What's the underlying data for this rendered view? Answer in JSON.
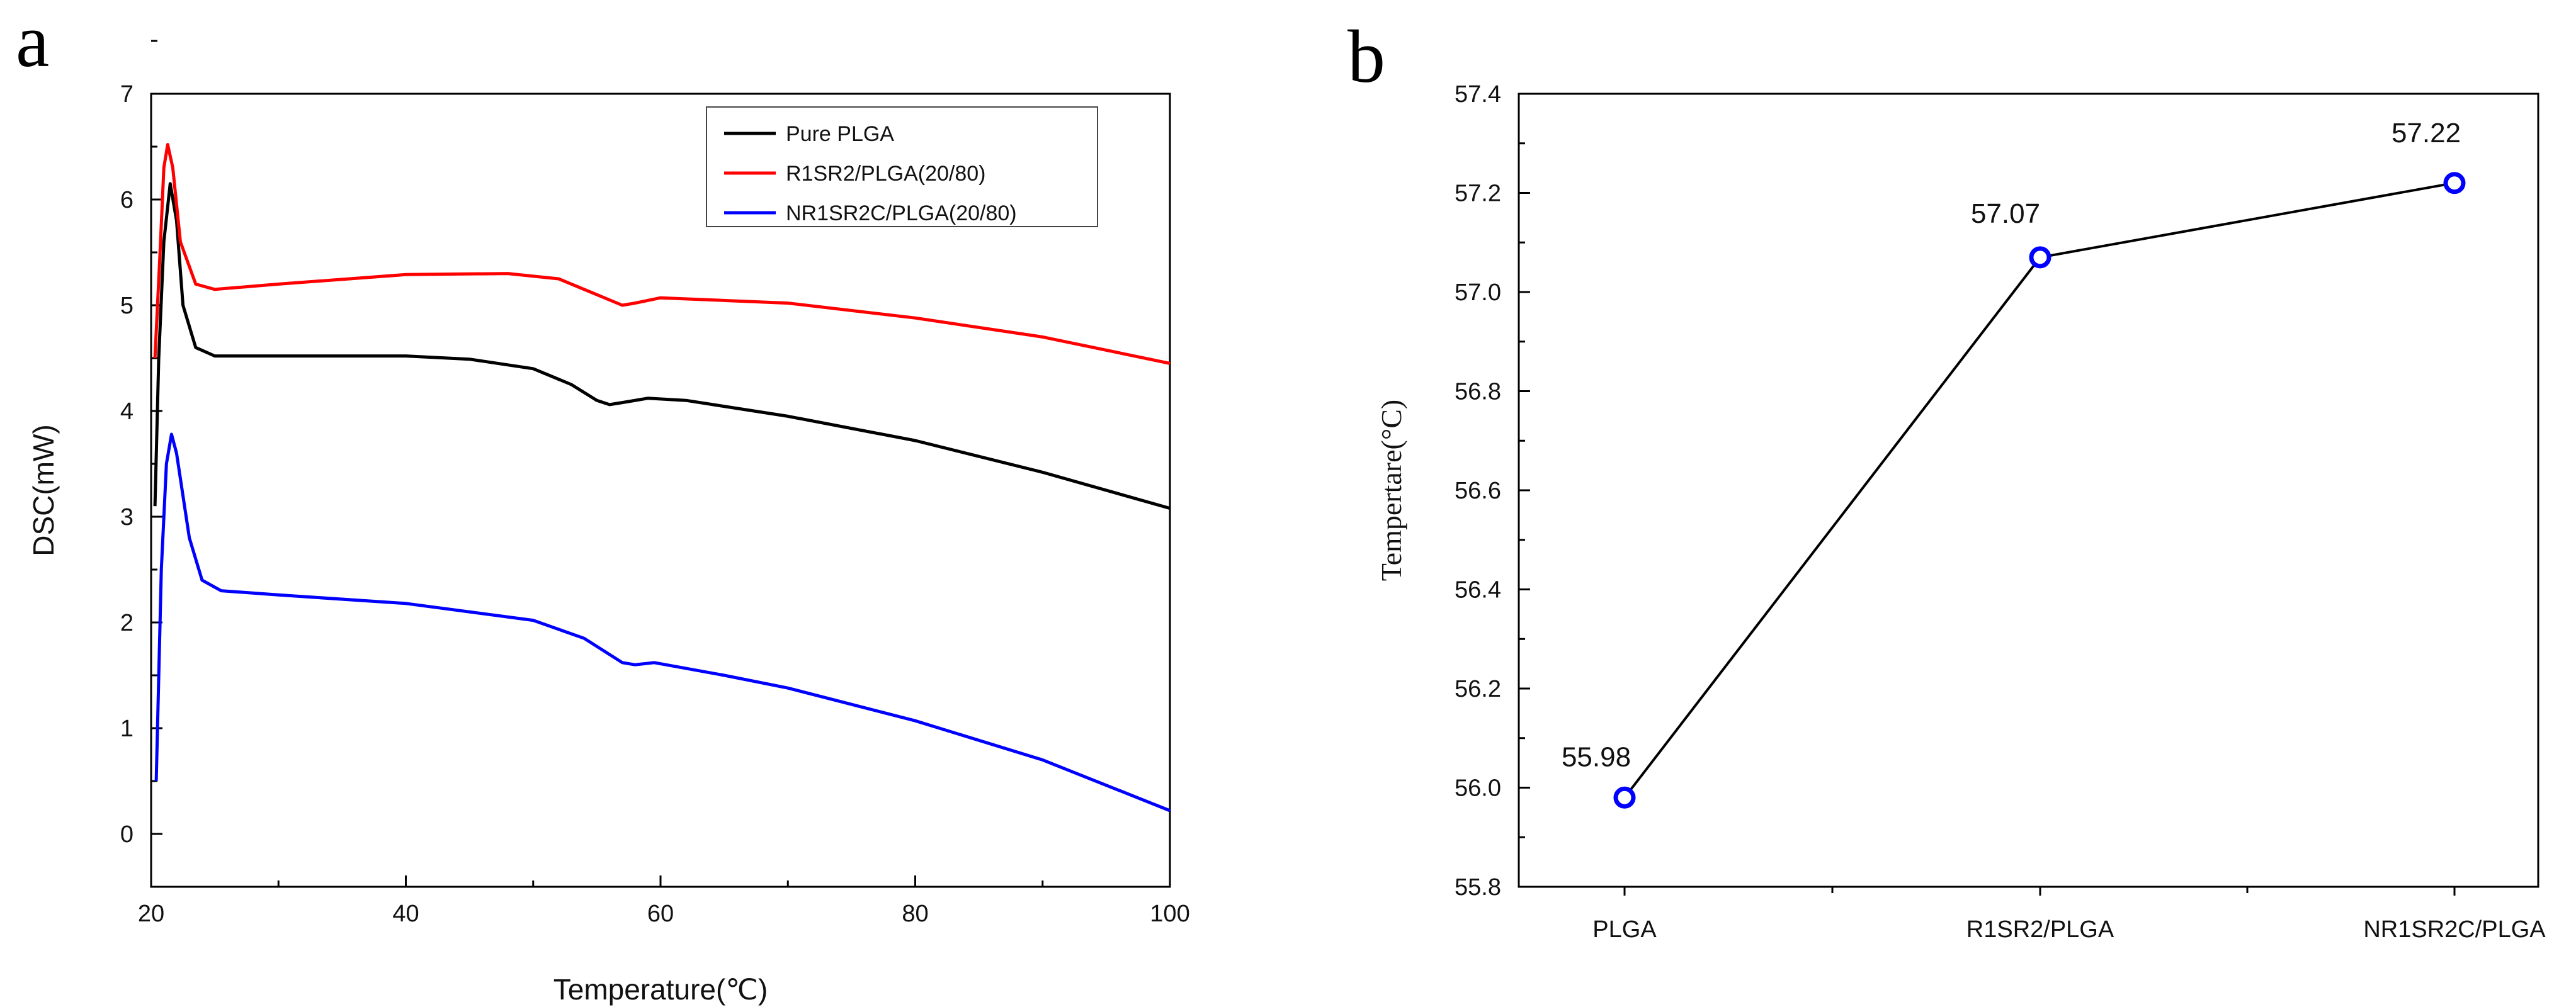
{
  "panels": {
    "a": "a",
    "b": "b"
  },
  "chart_data": [
    {
      "type": "line",
      "xlabel": "Temperature(℃)",
      "ylabel": "DSC(mW)",
      "xlim": [
        20,
        100
      ],
      "ylim": [
        -0.5,
        7
      ],
      "xticks": [
        "20",
        "40",
        "60",
        "80",
        "100"
      ],
      "yticks": [
        "0",
        "1",
        "2",
        "3",
        "4",
        "5",
        "6",
        "7"
      ],
      "grid": false,
      "legend_position": "top-right",
      "series": [
        {
          "name": "Pure PLGA",
          "color": "#000000",
          "points": [
            [
              20.3,
              3.1
            ],
            [
              20.6,
              4.5
            ],
            [
              21,
              5.6
            ],
            [
              21.5,
              6.15
            ],
            [
              22,
              5.8
            ],
            [
              22.5,
              5.0
            ],
            [
              23.5,
              4.6
            ],
            [
              25,
              4.52
            ],
            [
              30,
              4.52
            ],
            [
              40,
              4.52
            ],
            [
              45,
              4.49
            ],
            [
              50,
              4.4
            ],
            [
              53,
              4.25
            ],
            [
              55,
              4.1
            ],
            [
              56,
              4.06
            ],
            [
              57,
              4.08
            ],
            [
              59,
              4.12
            ],
            [
              62,
              4.1
            ],
            [
              70,
              3.95
            ],
            [
              80,
              3.72
            ],
            [
              90,
              3.42
            ],
            [
              100,
              3.08
            ]
          ]
        },
        {
          "name": "R1SR2/PLGA(20/80)",
          "color": "#ff0000",
          "points": [
            [
              20.3,
              4.5
            ],
            [
              20.7,
              5.5
            ],
            [
              21,
              6.3
            ],
            [
              21.3,
              6.52
            ],
            [
              21.7,
              6.3
            ],
            [
              22.3,
              5.6
            ],
            [
              23.5,
              5.2
            ],
            [
              25,
              5.15
            ],
            [
              30,
              5.2
            ],
            [
              40,
              5.29
            ],
            [
              48,
              5.3
            ],
            [
              52,
              5.25
            ],
            [
              55,
              5.1
            ],
            [
              57,
              5.0
            ],
            [
              58,
              5.02
            ],
            [
              60,
              5.07
            ],
            [
              70,
              5.02
            ],
            [
              80,
              4.88
            ],
            [
              90,
              4.7
            ],
            [
              100,
              4.45
            ]
          ]
        },
        {
          "name": "NR1SR2C/PLGA(20/80)",
          "color": "#0000ff",
          "points": [
            [
              20.4,
              0.5
            ],
            [
              20.8,
              2.5
            ],
            [
              21.2,
              3.5
            ],
            [
              21.6,
              3.78
            ],
            [
              22,
              3.6
            ],
            [
              23,
              2.8
            ],
            [
              24,
              2.4
            ],
            [
              25.5,
              2.3
            ],
            [
              30,
              2.26
            ],
            [
              40,
              2.18
            ],
            [
              50,
              2.02
            ],
            [
              54,
              1.85
            ],
            [
              57,
              1.62
            ],
            [
              58,
              1.6
            ],
            [
              59.5,
              1.62
            ],
            [
              65,
              1.5
            ],
            [
              70,
              1.38
            ],
            [
              80,
              1.07
            ],
            [
              90,
              0.7
            ],
            [
              100,
              0.22
            ]
          ]
        }
      ]
    },
    {
      "type": "line",
      "xlabel": "",
      "ylabel": "Tempertare(°C)",
      "categories": [
        "PLGA",
        "R1SR2/PLGA",
        "NR1SR2C/PLGA"
      ],
      "values": [
        55.98,
        57.07,
        57.22
      ],
      "data_labels": [
        "55.98",
        "57.07",
        "57.22"
      ],
      "ylim": [
        55.8,
        57.4
      ],
      "yticks": [
        "55.8",
        "56.0",
        "56.2",
        "56.4",
        "56.6",
        "56.8",
        "57.0",
        "57.2",
        "57.4"
      ],
      "grid": false,
      "line_color": "#000000",
      "marker_color": "#0000ff",
      "marker": "open-circle"
    }
  ]
}
